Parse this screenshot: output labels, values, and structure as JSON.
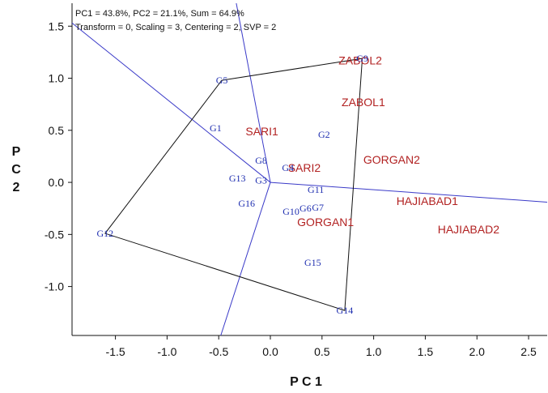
{
  "chart_data": {
    "type": "scatter",
    "info_lines": [
      "PC1 = 43.8%, PC2 = 21.1%, Sum = 64.9%",
      "Transform = 0, Scaling = 3, Centering = 2, SVP = 2"
    ],
    "xlabel": "P C 1",
    "ylabel": [
      "P",
      "C",
      "2"
    ],
    "xlim": [
      -1.92,
      2.68
    ],
    "ylim": [
      -1.47,
      1.72
    ],
    "xticks": [
      -1.5,
      -1.0,
      -0.5,
      0.0,
      0.5,
      1.0,
      1.5,
      2.0,
      2.5
    ],
    "xtick_labels": [
      "-1.5",
      "-1.0",
      "-0.5",
      "0.0",
      "0.5",
      "1.0",
      "1.5",
      "2.0",
      "2.5"
    ],
    "yticks": [
      1.5,
      1.0,
      0.5,
      0.0,
      -0.5,
      -1.0
    ],
    "ytick_labels": [
      "1.5",
      "1.0",
      "0.5",
      "0.0",
      "-0.5",
      "-1.0"
    ],
    "colors": {
      "genotype": "#1f2fb0",
      "environment": "#b22222",
      "hull": "#111111",
      "sector_rays": "#3a3ac8",
      "axes": "#111111"
    },
    "genotypes": [
      {
        "label": "G1",
        "x": -0.53,
        "y": 0.52
      },
      {
        "label": "G2",
        "x": 0.52,
        "y": 0.46
      },
      {
        "label": "G3",
        "x": -0.09,
        "y": 0.02
      },
      {
        "label": "G4",
        "x": 0.17,
        "y": 0.14
      },
      {
        "label": "G5",
        "x": -0.47,
        "y": 0.98
      },
      {
        "label": "G6",
        "x": 0.34,
        "y": -0.25
      },
      {
        "label": "G7",
        "x": 0.46,
        "y": -0.24
      },
      {
        "label": "G8",
        "x": -0.09,
        "y": 0.21
      },
      {
        "label": "G9",
        "x": 0.89,
        "y": 1.19
      },
      {
        "label": "G10",
        "x": 0.2,
        "y": -0.28
      },
      {
        "label": "G11",
        "x": 0.44,
        "y": -0.07
      },
      {
        "label": "G12",
        "x": -1.6,
        "y": -0.49
      },
      {
        "label": "G13",
        "x": -0.32,
        "y": 0.04
      },
      {
        "label": "G14",
        "x": 0.72,
        "y": -1.23
      },
      {
        "label": "G15",
        "x": 0.41,
        "y": -0.77
      },
      {
        "label": "G16",
        "x": -0.23,
        "y": -0.2
      }
    ],
    "environments": [
      {
        "label": "ZABOL2",
        "x": 0.66,
        "y": 1.17
      },
      {
        "label": "ZABOL1",
        "x": 0.69,
        "y": 0.77
      },
      {
        "label": "SARI1",
        "x": -0.24,
        "y": 0.49
      },
      {
        "label": "SARI2",
        "x": 0.17,
        "y": 0.14
      },
      {
        "label": "GORGAN2",
        "x": 0.9,
        "y": 0.22
      },
      {
        "label": "HAJIABAD1",
        "x": 1.22,
        "y": -0.18
      },
      {
        "label": "GORGAN1",
        "x": 0.26,
        "y": -0.38
      },
      {
        "label": "HAJIABAD2",
        "x": 1.62,
        "y": -0.45
      }
    ],
    "polygon_vertices": [
      "G5",
      "G9",
      "G14",
      "G12"
    ],
    "sector_rays": [
      {
        "from": [
          0,
          0
        ],
        "to": [
          -1.92,
          1.53
        ]
      },
      {
        "from": [
          0,
          0
        ],
        "to": [
          -0.33,
          1.72
        ]
      },
      {
        "from": [
          0,
          0
        ],
        "to": [
          2.68,
          -0.19
        ]
      },
      {
        "from": [
          0,
          0
        ],
        "to": [
          -0.48,
          -1.47
        ]
      }
    ]
  }
}
